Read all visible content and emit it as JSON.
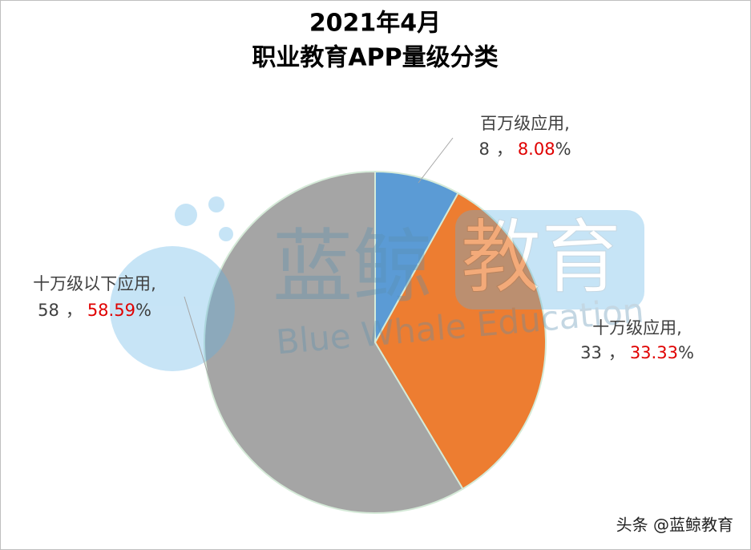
{
  "chart_data": {
    "type": "pie",
    "title": [
      "2021年4月",
      "职业教育APP量级分类"
    ],
    "categories": [
      "百万级应用",
      "十万级应用",
      "十万级以下应用"
    ],
    "values": [
      8,
      33,
      58
    ],
    "percentages": [
      8.08,
      33.33,
      58.59
    ],
    "percent_unit": "%",
    "name_separator": ",",
    "value_separator": "，",
    "colors": [
      "#5b9bd5",
      "#ed7d31",
      "#a5a5a5"
    ]
  },
  "watermark": {
    "logo": "蓝鲸",
    "logo_box": "教育",
    "english": "Blue Whale Education"
  },
  "footer": "头条 @蓝鲸教育"
}
